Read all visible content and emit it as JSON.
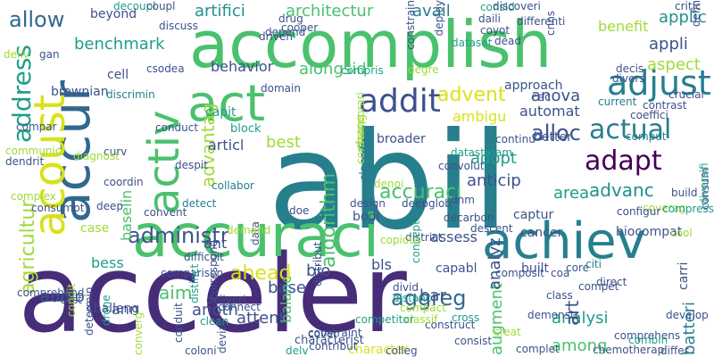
{
  "background": "#ffffff",
  "palette": {
    "purple": "#472c7a",
    "teal": "#277f8e",
    "green": "#4ac16d",
    "lime": "#a0da39",
    "yellow": "#d8e219",
    "blue": "#31688e",
    "midteal": "#1f9e89",
    "darkblue": "#3b528b",
    "navy": "#440154",
    "sea": "#21918c"
  },
  "words": [
    {
      "text": "abil",
      "color": "teal"
    },
    {
      "text": "acceler",
      "color": "purple"
    },
    {
      "text": "accomplish",
      "color": "green"
    },
    {
      "text": "accuraci",
      "color": "green"
    },
    {
      "text": "achiev",
      "color": "teal"
    },
    {
      "text": "accur",
      "color": "blue"
    },
    {
      "text": "act",
      "color": "green"
    },
    {
      "text": "activ",
      "color": "green"
    },
    {
      "text": "acoust",
      "color": "yellow"
    },
    {
      "text": "addit",
      "color": "darkblue"
    },
    {
      "text": "adjust",
      "color": "teal"
    },
    {
      "text": "actual",
      "color": "teal"
    },
    {
      "text": "adapt",
      "color": "navy"
    },
    {
      "text": "alloc",
      "color": "darkblue"
    },
    {
      "text": "address",
      "color": "midteal"
    },
    {
      "text": "agricultur",
      "color": "lime"
    },
    {
      "text": "administr",
      "color": "darkblue"
    },
    {
      "text": "advantag",
      "color": "lime"
    },
    {
      "text": "algorithm",
      "color": "green"
    },
    {
      "text": "allow",
      "color": "blue"
    },
    {
      "text": "artifici",
      "color": "sea"
    },
    {
      "text": "architectur",
      "color": "green"
    },
    {
      "text": "avail",
      "color": "teal"
    },
    {
      "text": "advent",
      "color": "yellow"
    },
    {
      "text": "anova",
      "color": "darkblue"
    },
    {
      "text": "applic",
      "color": "sea"
    },
    {
      "text": "appli",
      "color": "darkblue"
    },
    {
      "text": "aspect",
      "color": "lime"
    },
    {
      "text": "benefit",
      "color": "lime"
    },
    {
      "text": "alongsid",
      "color": "green"
    },
    {
      "text": "ambigu",
      "color": "yellow"
    },
    {
      "text": "automat",
      "color": "darkblue"
    },
    {
      "text": "adopt",
      "color": "midteal"
    },
    {
      "text": "anticip",
      "color": "darkblue"
    },
    {
      "text": "area",
      "color": "midteal"
    },
    {
      "text": "advanc",
      "color": "sea"
    },
    {
      "text": "accuraci",
      "color": "green"
    },
    {
      "text": "aggreg",
      "color": "blue"
    },
    {
      "text": "ahead",
      "color": "yellow"
    },
    {
      "text": "aim",
      "color": "green"
    },
    {
      "text": "ann",
      "color": "darkblue"
    },
    {
      "text": "base",
      "color": "darkblue"
    },
    {
      "text": "bar",
      "color": "darkblue"
    },
    {
      "text": "analysi",
      "color": "midteal"
    },
    {
      "text": "among",
      "color": "green"
    },
    {
      "text": "augment",
      "color": "green"
    },
    {
      "text": "art",
      "color": "darkblue"
    },
    {
      "text": "batteri",
      "color": "teal"
    },
    {
      "text": "analyz",
      "color": "darkblue"
    },
    {
      "text": "attent",
      "color": "darkblue"
    },
    {
      "text": "anoth",
      "color": "darkblue"
    },
    {
      "text": "balanc",
      "color": "green"
    },
    {
      "text": "bio",
      "color": "darkblue"
    },
    {
      "text": "audio",
      "color": "darkblue"
    },
    {
      "text": "bess",
      "color": "midteal"
    },
    {
      "text": "bls",
      "color": "darkblue"
    },
    {
      "text": "capabl",
      "color": "darkblue"
    },
    {
      "text": "assess",
      "color": "darkblue"
    },
    {
      "text": "ant",
      "color": "darkblue"
    },
    {
      "text": "best",
      "color": "lime"
    },
    {
      "text": "articl",
      "color": "darkblue"
    },
    {
      "text": "baselin",
      "color": "green"
    },
    {
      "text": "behavior",
      "color": "darkblue"
    },
    {
      "text": "benchmark",
      "color": "midteal"
    },
    {
      "text": "beyond",
      "color": "darkblue"
    },
    {
      "text": "cell",
      "color": "darkblue"
    },
    {
      "text": "approach",
      "color": "darkblue"
    },
    {
      "text": "better",
      "color": "darkblue"
    },
    {
      "text": "broader",
      "color": "darkblue"
    },
    {
      "text": "bodi",
      "color": "darkblue"
    },
    {
      "text": "captur",
      "color": "darkblue"
    },
    {
      "text": "biocompat",
      "color": "darkblue"
    },
    {
      "text": "cancer",
      "color": "darkblue"
    },
    {
      "text": "capit",
      "color": "midteal"
    },
    {
      "text": "block",
      "color": "midteal"
    },
    {
      "text": "case",
      "color": "lime"
    },
    {
      "text": "brownian",
      "color": "darkblue"
    },
    {
      "text": "challeng",
      "color": "darkblue"
    },
    {
      "text": "character",
      "color": "yellow"
    },
    {
      "text": "characterist",
      "color": "darkblue"
    },
    {
      "text": "built",
      "color": "darkblue"
    },
    {
      "text": "carri",
      "color": "darkblue"
    },
    {
      "text": "cec",
      "color": "darkblue"
    },
    {
      "text": "chang",
      "color": "lime"
    },
    {
      "text": "classifi",
      "color": "teal"
    },
    {
      "text": "compris",
      "color": "midteal"
    },
    {
      "text": "datastream",
      "color": "midteal"
    },
    {
      "text": "continu",
      "color": "darkblue"
    },
    {
      "text": "current",
      "color": "teal"
    },
    {
      "text": "crucial",
      "color": "darkblue"
    },
    {
      "text": "contrast",
      "color": "darkblue"
    },
    {
      "text": "comput",
      "color": "teal"
    },
    {
      "text": "build",
      "color": "darkblue"
    },
    {
      "text": "coverag",
      "color": "lime"
    },
    {
      "text": "configur",
      "color": "darkblue"
    },
    {
      "text": "compress",
      "color": "midteal"
    },
    {
      "text": "consum",
      "color": "darkblue"
    },
    {
      "text": "cool",
      "color": "lime"
    },
    {
      "text": "citi",
      "color": "teal"
    },
    {
      "text": "coa",
      "color": "darkblue"
    },
    {
      "text": "direct",
      "color": "darkblue"
    },
    {
      "text": "class",
      "color": "darkblue"
    },
    {
      "text": "develop",
      "color": "darkblue"
    },
    {
      "text": "comprehens",
      "color": "darkblue"
    },
    {
      "text": "combin",
      "color": "midteal"
    },
    {
      "text": "chemotherapi",
      "color": "darkblue"
    },
    {
      "text": "differ",
      "color": "darkblue"
    },
    {
      "text": "core",
      "color": "darkblue"
    },
    {
      "text": "demonstr",
      "color": "darkblue"
    },
    {
      "text": "consist",
      "color": "darkblue"
    },
    {
      "text": "composit",
      "color": "darkblue"
    },
    {
      "text": "compet",
      "color": "darkblue"
    },
    {
      "text": "complet",
      "color": "darkblue"
    },
    {
      "text": "descent",
      "color": "darkblue"
    },
    {
      "text": "construct",
      "color": "darkblue"
    },
    {
      "text": "compact",
      "color": "lime"
    },
    {
      "text": "classif",
      "color": "lime"
    },
    {
      "text": "creat",
      "color": "lime"
    },
    {
      "text": "cross",
      "color": "midteal"
    },
    {
      "text": "competitor",
      "color": "midteal"
    },
    {
      "text": "cover",
      "color": "darkblue"
    },
    {
      "text": "delv",
      "color": "midteal"
    },
    {
      "text": "colleg",
      "color": "darkblue"
    },
    {
      "text": "contribut",
      "color": "darkblue"
    },
    {
      "text": "constraint",
      "color": "darkblue"
    },
    {
      "text": "converg",
      "color": "lime"
    },
    {
      "text": "drone",
      "color": "midteal"
    },
    {
      "text": "clean",
      "color": "midteal"
    },
    {
      "text": "conduit",
      "color": "darkblue"
    },
    {
      "text": "deviat",
      "color": "darkblue"
    },
    {
      "text": "coloni",
      "color": "darkblue"
    },
    {
      "text": "correspond",
      "color": "darkblue"
    },
    {
      "text": "deliveri",
      "color": "darkblue"
    },
    {
      "text": "connect",
      "color": "darkblue"
    },
    {
      "text": "cost",
      "color": "darkblue"
    },
    {
      "text": "comparison",
      "color": "darkblue"
    },
    {
      "text": "condit",
      "color": "lime"
    },
    {
      "text": "determin",
      "color": "darkblue"
    },
    {
      "text": "distinct",
      "color": "midteal"
    },
    {
      "text": "difficult",
      "color": "darkblue"
    },
    {
      "text": "data",
      "color": "darkblue"
    },
    {
      "text": "distribut",
      "color": "darkblue"
    },
    {
      "text": "district",
      "color": "darkblue"
    },
    {
      "text": "divid",
      "color": "darkblue"
    },
    {
      "text": "distanc",
      "color": "midteal"
    },
    {
      "text": "concept",
      "color": "midteal"
    },
    {
      "text": "copious",
      "color": "lime"
    },
    {
      "text": "decarbon",
      "color": "darkblue"
    },
    {
      "text": "dnm",
      "color": "darkblue"
    },
    {
      "text": "diversifi",
      "color": "midteal"
    },
    {
      "text": "comprehend",
      "color": "darkblue"
    },
    {
      "text": "convent",
      "color": "darkblue"
    },
    {
      "text": "demand",
      "color": "lime"
    },
    {
      "text": "detect",
      "color": "teal"
    },
    {
      "text": "doe",
      "color": "darkblue"
    },
    {
      "text": "design",
      "color": "darkblue"
    },
    {
      "text": "deepglob",
      "color": "darkblue"
    },
    {
      "text": "denoi",
      "color": "lime"
    },
    {
      "text": "contemporari",
      "color": "lime"
    },
    {
      "text": "convolut",
      "color": "darkblue"
    },
    {
      "text": "consumpt",
      "color": "darkblue"
    },
    {
      "text": "complex",
      "color": "lime"
    },
    {
      "text": "collabor",
      "color": "teal"
    },
    {
      "text": "despit",
      "color": "darkblue"
    },
    {
      "text": "conduct",
      "color": "darkblue"
    },
    {
      "text": "curv",
      "color": "darkblue"
    },
    {
      "text": "coordin",
      "color": "darkblue"
    },
    {
      "text": "deep",
      "color": "darkblue"
    },
    {
      "text": "diagnost",
      "color": "lime"
    },
    {
      "text": "compar",
      "color": "darkblue"
    },
    {
      "text": "communic",
      "color": "lime"
    },
    {
      "text": "dendrit",
      "color": "darkblue"
    },
    {
      "text": "discrimin",
      "color": "teal"
    },
    {
      "text": "csodea",
      "color": "darkblue"
    },
    {
      "text": "domain",
      "color": "darkblue"
    },
    {
      "text": "depend",
      "color": "darkblue"
    },
    {
      "text": "driven",
      "color": "darkblue"
    },
    {
      "text": "drug",
      "color": "darkblue"
    },
    {
      "text": "cooper",
      "color": "darkblue"
    },
    {
      "text": "discuss",
      "color": "darkblue"
    },
    {
      "text": "decoupl",
      "color": "midteal"
    },
    {
      "text": "coupl",
      "color": "darkblue"
    },
    {
      "text": "deploy",
      "color": "darkblue"
    },
    {
      "text": "daili",
      "color": "darkblue"
    },
    {
      "text": "coyot",
      "color": "darkblue"
    },
    {
      "text": "consid",
      "color": "midteal"
    },
    {
      "text": "discoveri",
      "color": "darkblue"
    },
    {
      "text": "critic",
      "color": "darkblue"
    },
    {
      "text": "defin",
      "color": "darkblue"
    },
    {
      "text": "cnns",
      "color": "darkblue"
    },
    {
      "text": "differenti",
      "color": "darkblue"
    },
    {
      "text": "dead",
      "color": "darkblue"
    },
    {
      "text": "dataset",
      "color": "midteal"
    },
    {
      "text": "constrain",
      "color": "darkblue"
    },
    {
      "text": "degre",
      "color": "lime"
    },
    {
      "text": "decis",
      "color": "darkblue"
    },
    {
      "text": "divers",
      "color": "darkblue"
    },
    {
      "text": "coeffici",
      "color": "darkblue"
    },
    {
      "text": "deliv",
      "color": "lime"
    },
    {
      "text": "gan",
      "color": "darkblue"
    }
  ]
}
